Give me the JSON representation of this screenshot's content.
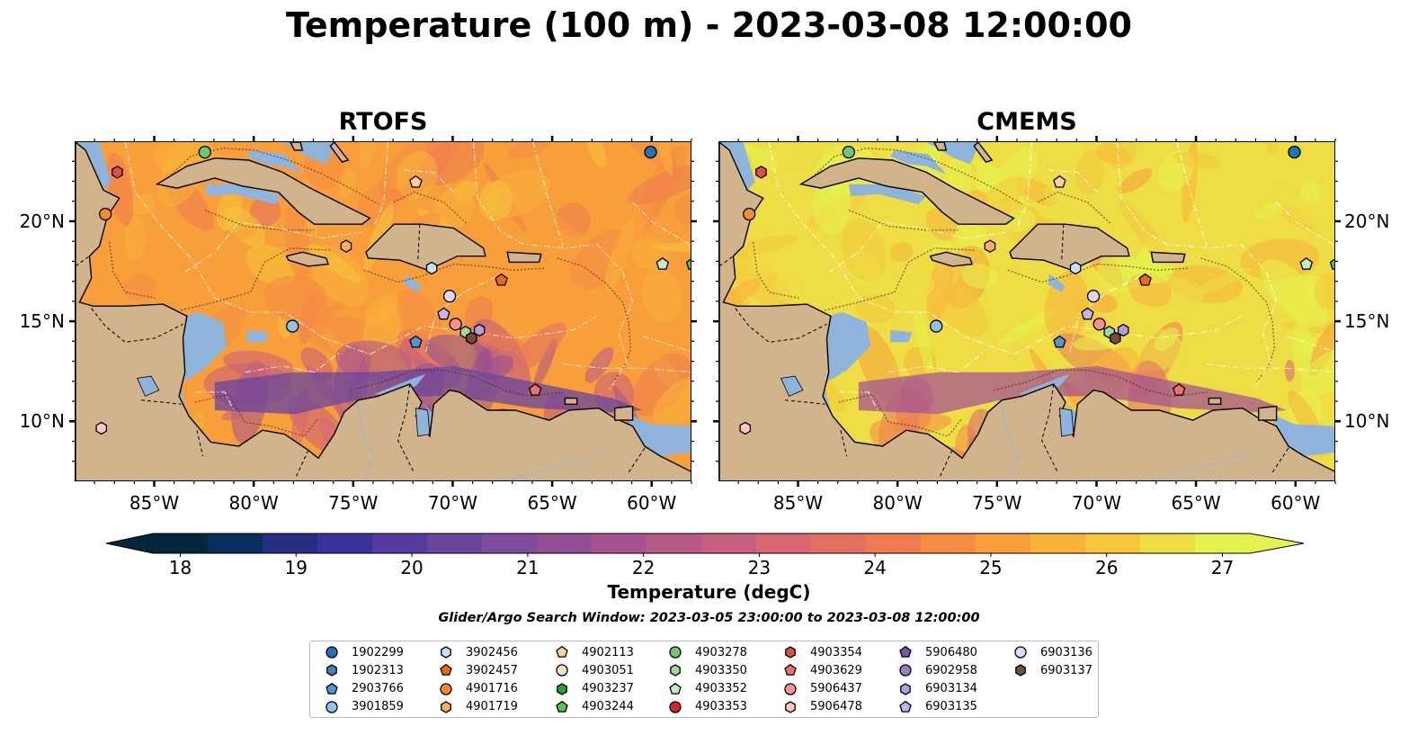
{
  "title": "Temperature (100 m) - 2023-03-08 12:00:00",
  "panels": [
    {
      "title": "RTOFS",
      "palette": "warm"
    },
    {
      "title": "CMEMS",
      "palette": "hot"
    }
  ],
  "map_extent": {
    "lon": [
      -89,
      -58
    ],
    "lat": [
      7,
      24
    ]
  },
  "lon_ticks": [
    "85°W",
    "80°W",
    "75°W",
    "70°W",
    "65°W",
    "60°W"
  ],
  "lat_ticks": [
    "20°N",
    "15°N",
    "10°N"
  ],
  "colorbar": {
    "label": "Temperature (degC)",
    "ticks": [
      "18",
      "19",
      "20",
      "21",
      "22",
      "23",
      "24",
      "25",
      "26",
      "27"
    ],
    "range": [
      18,
      27
    ],
    "extend": "both",
    "colors": [
      "#03263a",
      "#0b2d5e",
      "#252f82",
      "#3b319a",
      "#573a9e",
      "#6b449d",
      "#7e4c9c",
      "#924f96",
      "#a55490",
      "#b85a88",
      "#c95f7e",
      "#d86772",
      "#e47062",
      "#ee7b52",
      "#f58c43",
      "#f89e3b",
      "#f9b23a",
      "#f6c63c",
      "#eedd45",
      "#e6f24f"
    ]
  },
  "search_window": "Glider/Argo Search Window: 2023-03-05 23:00:00 to 2023-03-08 12:00:00",
  "colors": {
    "land": "#d1b48c",
    "shallow": "#8fb4dc",
    "pacific": "#05253a",
    "coast": "#000000"
  },
  "floats": [
    {
      "id": "1902299",
      "marker": "circle",
      "color": "#2372b5",
      "lon": -60.1,
      "lat": 23.5
    },
    {
      "id": "1902313",
      "marker": "hexagon",
      "color": "#4480bd"
    },
    {
      "id": "2903766",
      "marker": "pentagon",
      "color": "#4f97d2",
      "lon": -71.9,
      "lat": 14.0
    },
    {
      "id": "3901859",
      "marker": "circle",
      "color": "#8fc2ee",
      "lon": -78.1,
      "lat": 14.8
    },
    {
      "id": "3902456",
      "marker": "hexagon",
      "color": "#c7e2f6",
      "lon": -71.1,
      "lat": 17.7
    },
    {
      "id": "3902457",
      "marker": "pentagon",
      "color": "#ed6a0c",
      "lon": -67.6,
      "lat": 17.1
    },
    {
      "id": "4901716",
      "marker": "circle",
      "color": "#f58b2c",
      "lon": -87.5,
      "lat": 20.4
    },
    {
      "id": "4901719",
      "marker": "hexagon",
      "color": "#fcae5c",
      "lon": -75.4,
      "lat": 18.8
    },
    {
      "id": "4902113",
      "marker": "pentagon",
      "color": "#fdd09c",
      "lon": -71.9,
      "lat": 22.0
    },
    {
      "id": "4903051",
      "marker": "circle",
      "color": "#fde3c7"
    },
    {
      "id": "4903237",
      "marker": "hexagon",
      "color": "#2c9d38"
    },
    {
      "id": "4903244",
      "marker": "pentagon",
      "color": "#59c258",
      "lon": -58.0,
      "lat": 17.9
    },
    {
      "id": "4903278",
      "marker": "circle",
      "color": "#74c476",
      "lon": -82.5,
      "lat": 23.5
    },
    {
      "id": "4903350",
      "marker": "hexagon",
      "color": "#a1d99b",
      "lon": -69.4,
      "lat": 14.5
    },
    {
      "id": "4903352",
      "marker": "pentagon",
      "color": "#c7e9c0",
      "lon": -59.5,
      "lat": 17.9
    },
    {
      "id": "4903353",
      "marker": "circle",
      "color": "#d72827"
    },
    {
      "id": "4903354",
      "marker": "hexagon",
      "color": "#e34f45",
      "lon": -86.9,
      "lat": 22.5
    },
    {
      "id": "4903629",
      "marker": "pentagon",
      "color": "#ef6e6e",
      "lon": -65.9,
      "lat": 11.6
    },
    {
      "id": "5906437",
      "marker": "circle",
      "color": "#f59191",
      "lon": -69.9,
      "lat": 14.9
    },
    {
      "id": "5906478",
      "marker": "hexagon",
      "color": "#fcc6c6",
      "lon": -87.7,
      "lat": 9.7
    },
    {
      "id": "5906480",
      "marker": "pentagon",
      "color": "#7e52a5"
    },
    {
      "id": "6902958",
      "marker": "circle",
      "color": "#9e7bc6"
    },
    {
      "id": "6903134",
      "marker": "hexagon",
      "color": "#b49ce0",
      "lon": -68.7,
      "lat": 14.6
    },
    {
      "id": "6903135",
      "marker": "pentagon",
      "color": "#c7b2ef",
      "lon": -70.5,
      "lat": 15.4
    },
    {
      "id": "6903136",
      "marker": "circle",
      "color": "#e5d5fb",
      "lon": -70.2,
      "lat": 16.3
    },
    {
      "id": "6903137",
      "marker": "hexagon",
      "color": "#7b4b3c",
      "lon": -69.1,
      "lat": 14.2
    }
  ]
}
